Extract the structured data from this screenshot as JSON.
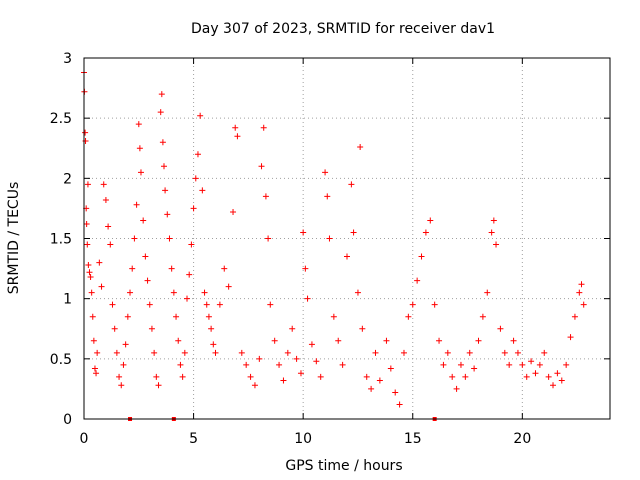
{
  "chart_data": {
    "type": "scatter",
    "title": "Day 307 of 2023, SRMTID for receiver dav1",
    "xlabel": "GPS time / hours",
    "ylabel": "SRMTID / TECUs",
    "xlim": [
      0,
      24
    ],
    "ylim": [
      0,
      3
    ],
    "xticks": [
      0,
      5,
      10,
      15,
      20
    ],
    "yticks": [
      0,
      0.5,
      1,
      1.5,
      2,
      2.5,
      3
    ],
    "xtick_labels": [
      "0",
      "5",
      "10",
      "15",
      "20"
    ],
    "ytick_labels": [
      "0",
      "0.5",
      "1",
      "1.5",
      "2",
      "2.5",
      "3"
    ],
    "grid": true,
    "marker": "+",
    "color": "#ff0000",
    "series": [
      {
        "name": "SRMTID",
        "points": [
          [
            0.0,
            2.88
          ],
          [
            0.02,
            2.72
          ],
          [
            0.05,
            2.38
          ],
          [
            0.07,
            2.31
          ],
          [
            0.1,
            1.75
          ],
          [
            0.12,
            1.62
          ],
          [
            0.15,
            1.45
          ],
          [
            0.18,
            1.95
          ],
          [
            0.2,
            1.28
          ],
          [
            0.25,
            1.22
          ],
          [
            0.3,
            1.18
          ],
          [
            0.35,
            1.05
          ],
          [
            0.4,
            0.85
          ],
          [
            0.45,
            0.65
          ],
          [
            0.5,
            0.42
          ],
          [
            0.55,
            0.38
          ],
          [
            0.6,
            0.55
          ],
          [
            0.7,
            1.3
          ],
          [
            0.8,
            1.1
          ],
          [
            0.9,
            1.95
          ],
          [
            1.0,
            1.82
          ],
          [
            1.1,
            1.6
          ],
          [
            1.2,
            1.45
          ],
          [
            1.3,
            0.95
          ],
          [
            1.4,
            0.75
          ],
          [
            1.5,
            0.55
          ],
          [
            1.6,
            0.35
          ],
          [
            1.7,
            0.28
          ],
          [
            1.8,
            0.45
          ],
          [
            1.9,
            0.62
          ],
          [
            2.0,
            0.85
          ],
          [
            2.1,
            1.05
          ],
          [
            2.2,
            1.25
          ],
          [
            2.3,
            1.5
          ],
          [
            2.4,
            1.78
          ],
          [
            2.5,
            2.45
          ],
          [
            2.55,
            2.25
          ],
          [
            2.6,
            2.05
          ],
          [
            2.7,
            1.65
          ],
          [
            2.8,
            1.35
          ],
          [
            2.9,
            1.15
          ],
          [
            3.0,
            0.95
          ],
          [
            3.1,
            0.75
          ],
          [
            3.2,
            0.55
          ],
          [
            3.3,
            0.35
          ],
          [
            3.4,
            0.28
          ],
          [
            3.5,
            2.55
          ],
          [
            3.55,
            2.7
          ],
          [
            3.6,
            2.3
          ],
          [
            3.65,
            2.1
          ],
          [
            3.7,
            1.9
          ],
          [
            3.8,
            1.7
          ],
          [
            3.9,
            1.5
          ],
          [
            4.0,
            1.25
          ],
          [
            4.1,
            1.05
          ],
          [
            4.2,
            0.85
          ],
          [
            4.3,
            0.65
          ],
          [
            4.4,
            0.45
          ],
          [
            4.5,
            0.35
          ],
          [
            4.6,
            0.55
          ],
          [
            4.7,
            1.0
          ],
          [
            4.8,
            1.2
          ],
          [
            4.9,
            1.45
          ],
          [
            5.0,
            1.75
          ],
          [
            5.1,
            2.0
          ],
          [
            5.2,
            2.2
          ],
          [
            5.3,
            2.52
          ],
          [
            5.4,
            1.9
          ],
          [
            5.5,
            1.05
          ],
          [
            5.6,
            0.95
          ],
          [
            5.7,
            0.85
          ],
          [
            5.8,
            0.75
          ],
          [
            5.9,
            0.62
          ],
          [
            6.0,
            0.55
          ],
          [
            6.2,
            0.95
          ],
          [
            6.4,
            1.25
          ],
          [
            6.6,
            1.1
          ],
          [
            6.8,
            1.72
          ],
          [
            6.9,
            2.42
          ],
          [
            7.0,
            2.35
          ],
          [
            7.2,
            0.55
          ],
          [
            7.4,
            0.45
          ],
          [
            7.6,
            0.35
          ],
          [
            7.8,
            0.28
          ],
          [
            8.0,
            0.5
          ],
          [
            8.1,
            2.1
          ],
          [
            8.2,
            2.42
          ],
          [
            8.3,
            1.85
          ],
          [
            8.4,
            1.5
          ],
          [
            8.5,
            0.95
          ],
          [
            8.7,
            0.65
          ],
          [
            8.9,
            0.45
          ],
          [
            9.1,
            0.32
          ],
          [
            9.3,
            0.55
          ],
          [
            9.5,
            0.75
          ],
          [
            9.7,
            0.5
          ],
          [
            9.9,
            0.38
          ],
          [
            10.0,
            1.55
          ],
          [
            10.1,
            1.25
          ],
          [
            10.2,
            1.0
          ],
          [
            10.4,
            0.62
          ],
          [
            10.6,
            0.48
          ],
          [
            10.8,
            0.35
          ],
          [
            11.0,
            2.05
          ],
          [
            11.1,
            1.85
          ],
          [
            11.2,
            1.5
          ],
          [
            11.4,
            0.85
          ],
          [
            11.6,
            0.65
          ],
          [
            11.8,
            0.45
          ],
          [
            12.0,
            1.35
          ],
          [
            12.2,
            1.95
          ],
          [
            12.3,
            1.55
          ],
          [
            12.5,
            1.05
          ],
          [
            12.6,
            2.26
          ],
          [
            12.7,
            0.75
          ],
          [
            12.9,
            0.35
          ],
          [
            13.1,
            0.25
          ],
          [
            13.3,
            0.55
          ],
          [
            13.5,
            0.32
          ],
          [
            13.8,
            0.65
          ],
          [
            14.0,
            0.42
          ],
          [
            14.2,
            0.22
          ],
          [
            14.4,
            0.12
          ],
          [
            14.6,
            0.55
          ],
          [
            14.8,
            0.85
          ],
          [
            15.0,
            0.95
          ],
          [
            15.2,
            1.15
          ],
          [
            15.4,
            1.35
          ],
          [
            15.6,
            1.55
          ],
          [
            15.8,
            1.65
          ],
          [
            16.0,
            0.95
          ],
          [
            16.2,
            0.65
          ],
          [
            16.4,
            0.45
          ],
          [
            16.6,
            0.55
          ],
          [
            16.8,
            0.35
          ],
          [
            17.0,
            0.25
          ],
          [
            17.2,
            0.45
          ],
          [
            17.4,
            0.35
          ],
          [
            17.6,
            0.55
          ],
          [
            17.8,
            0.42
          ],
          [
            18.0,
            0.65
          ],
          [
            18.2,
            0.85
          ],
          [
            18.4,
            1.05
          ],
          [
            18.6,
            1.55
          ],
          [
            18.7,
            1.65
          ],
          [
            18.8,
            1.45
          ],
          [
            19.0,
            0.75
          ],
          [
            19.2,
            0.55
          ],
          [
            19.4,
            0.45
          ],
          [
            19.6,
            0.65
          ],
          [
            19.8,
            0.55
          ],
          [
            20.0,
            0.45
          ],
          [
            20.2,
            0.35
          ],
          [
            20.4,
            0.48
          ],
          [
            20.6,
            0.38
          ],
          [
            20.8,
            0.45
          ],
          [
            21.0,
            0.55
          ],
          [
            21.2,
            0.35
          ],
          [
            21.4,
            0.28
          ],
          [
            21.6,
            0.38
          ],
          [
            21.8,
            0.32
          ],
          [
            22.0,
            0.45
          ],
          [
            22.2,
            0.68
          ],
          [
            22.4,
            0.85
          ],
          [
            22.6,
            1.05
          ],
          [
            22.7,
            1.12
          ],
          [
            22.8,
            0.95
          ]
        ]
      }
    ],
    "markers_on_xaxis": [
      2.1,
      4.1,
      16.0
    ]
  }
}
